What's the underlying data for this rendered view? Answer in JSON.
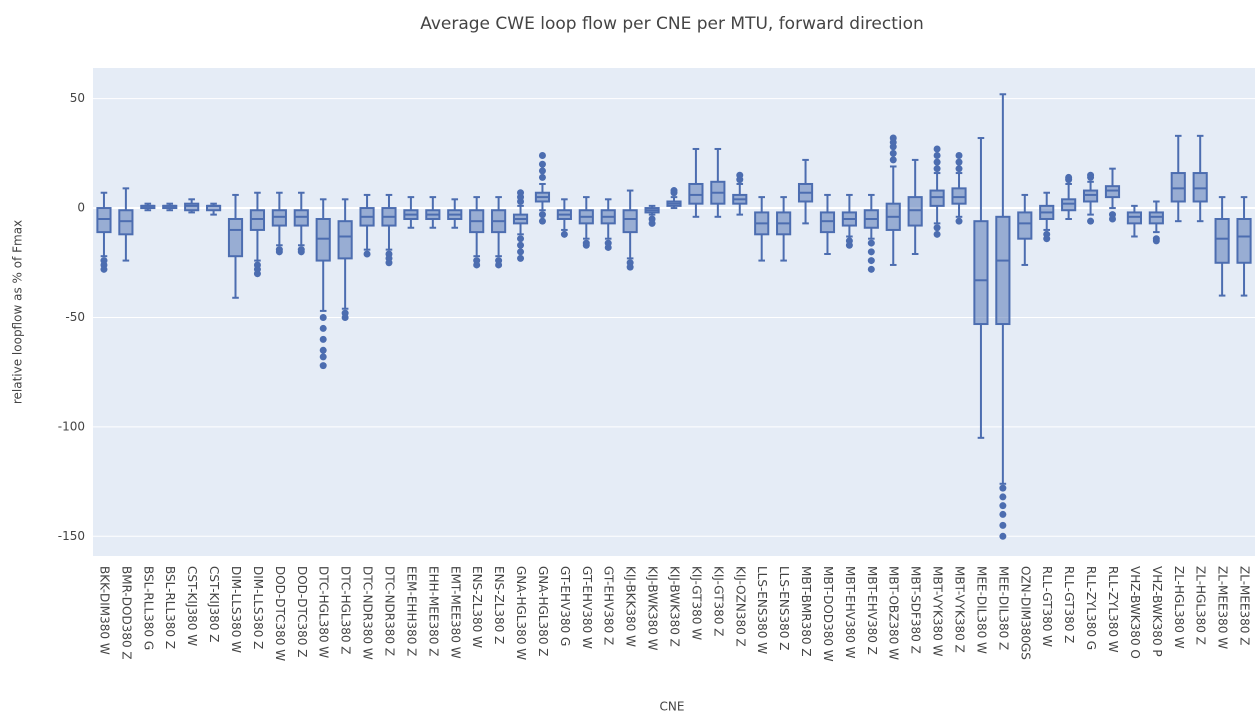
{
  "chart_data": {
    "type": "box",
    "title": "Average CWE loop flow per CNE per MTU, forward direction",
    "x_label": "CNE",
    "y_label": "relative loopflow as % of Fmax",
    "color": "#4c6db0",
    "grid": true,
    "ylim": [
      -159,
      64
    ],
    "yticks": [
      -150,
      -100,
      -50,
      0,
      50
    ],
    "categories": [
      "BKK-DIM380 W",
      "BMR-DOD380 Z",
      "BSL-RLL380 G",
      "BSL-RLL380 Z",
      "CST-KIJ380 W",
      "CST-KIJ380 Z",
      "DIM-LLS380 W",
      "DIM-LLS380 Z",
      "DOD-DTC380 W",
      "DOD-DTC380 Z",
      "DTC-HGL380 W",
      "DTC-HGL380 Z",
      "DTC-NDR380 W",
      "DTC-NDR380 Z",
      "EEM-EHH380 Z",
      "EHH-MEE380 Z",
      "EMT-MEE380 W",
      "ENS-ZL380 W",
      "ENS-ZL380 Z",
      "GNA-HGL380 W",
      "GNA-HGL380 Z",
      "GT-EHV380 G",
      "GT-EHV380 W",
      "GT-EHV380 Z",
      "KIJ-BKK380 W",
      "KIJ-BWK380 W",
      "KIJ-BWK380 Z",
      "KIJ-GT380 W",
      "KIJ-GT380 Z",
      "KIJ-OZN380 Z",
      "LLS-ENS380 W",
      "LLS-ENS380 Z",
      "MBT-BMR380 Z",
      "MBT-DOD380 W",
      "MBT-EHV380 W",
      "MBT-EHV380 Z",
      "MBT-OBZ380 W",
      "MBT-SDF380 Z",
      "MBT-VYK380 W",
      "MBT-VYK380 Z",
      "MEE-DIL380 W",
      "MEE-DIL380 Z",
      "OZN-DIM380GS",
      "RLL-GT380 W",
      "RLL-GT380 Z",
      "RLL-ZYL380 G",
      "RLL-ZYL380 W",
      "VHZ-BWK380 O",
      "VHZ-BWK380 P",
      "ZL-HGL380 W",
      "ZL-HGL380 Z",
      "ZL-MEE380 W",
      "ZL-MEE380 Z"
    ],
    "low": [
      -22,
      -24,
      -1,
      -1,
      -2,
      -3,
      -41,
      -24,
      -17,
      -17,
      -47,
      -46,
      -19,
      -19,
      -9,
      -9,
      -9,
      -22,
      -22,
      -12,
      -1,
      -10,
      -14,
      -14,
      -23,
      -3,
      0,
      -4,
      -4,
      -3,
      -24,
      -24,
      -7,
      -21,
      -13,
      -14,
      -26,
      -21,
      -7,
      -4,
      -105,
      -126,
      -26,
      -10,
      -5,
      -3,
      0,
      -13,
      -11,
      -6,
      -6,
      -40,
      -40
    ],
    "q1": [
      -11,
      -12,
      0,
      0,
      -1,
      -1,
      -22,
      -10,
      -8,
      -8,
      -24,
      -23,
      -8,
      -8,
      -5,
      -5,
      -5,
      -11,
      -11,
      -7,
      3,
      -5,
      -7,
      -7,
      -11,
      -2,
      1,
      2,
      2,
      2,
      -12,
      -12,
      3,
      -11,
      -8,
      -9,
      -10,
      -8,
      1,
      2,
      -53,
      -53,
      -14,
      -5,
      -1,
      3,
      5,
      -7,
      -7,
      3,
      3,
      -25,
      -25
    ],
    "median": [
      -5,
      -6,
      1,
      1,
      1,
      1,
      -10,
      -5,
      -4,
      -4,
      -14,
      -13,
      -4,
      -4,
      -3,
      -3,
      -3,
      -6,
      -6,
      -5,
      5,
      -3,
      -4,
      -4,
      -5,
      -1,
      2,
      6,
      7,
      4,
      -7,
      -7,
      7,
      -6,
      -5,
      -5,
      -4,
      -1,
      5,
      5,
      -33,
      -24,
      -7,
      -2,
      2,
      6,
      8,
      -4,
      -4,
      9,
      9,
      -14,
      -13
    ],
    "q3": [
      0,
      -1,
      1,
      1,
      2,
      1,
      -5,
      -1,
      -1,
      -1,
      -5,
      -6,
      0,
      0,
      -1,
      -1,
      -1,
      -1,
      -1,
      -3,
      7,
      -1,
      -1,
      -1,
      -1,
      0,
      3,
      11,
      12,
      6,
      -2,
      -2,
      11,
      -2,
      -2,
      -1,
      2,
      5,
      8,
      9,
      -6,
      -4,
      -2,
      1,
      4,
      8,
      10,
      -2,
      -2,
      16,
      16,
      -5,
      -5
    ],
    "high": [
      7,
      9,
      2,
      2,
      4,
      2,
      6,
      7,
      7,
      7,
      4,
      4,
      6,
      6,
      5,
      5,
      4,
      5,
      5,
      1,
      11,
      4,
      5,
      4,
      8,
      1,
      5,
      27,
      27,
      11,
      5,
      5,
      22,
      6,
      6,
      6,
      19,
      22,
      16,
      16,
      32,
      52,
      6,
      7,
      11,
      12,
      18,
      1,
      3,
      33,
      33,
      5,
      5
    ],
    "outliers": [
      [
        -24,
        -26,
        -28
      ],
      [],
      [],
      [],
      [],
      [],
      [],
      [
        -26,
        -28,
        -30
      ],
      [
        -19,
        -20
      ],
      [
        -19,
        -20
      ],
      [
        -50,
        -55,
        -60,
        -65,
        -68,
        -72
      ],
      [
        -48,
        -50
      ],
      [
        -21
      ],
      [
        -21,
        -23,
        -25
      ],
      [],
      [],
      [],
      [
        -24,
        -26
      ],
      [
        -24,
        -26
      ],
      [
        -14,
        -17,
        -20,
        -23,
        3,
        5,
        7
      ],
      [
        -6,
        -3,
        14,
        17,
        20,
        24
      ],
      [
        -12
      ],
      [
        -16,
        -17
      ],
      [
        -16,
        -18
      ],
      [
        -25,
        -27
      ],
      [
        -5,
        -7
      ],
      [
        7,
        8
      ],
      [],
      [],
      [
        13,
        15
      ],
      [],
      [],
      [],
      [],
      [
        -15,
        -17
      ],
      [
        -16,
        -20,
        -24,
        -28
      ],
      [
        22,
        25,
        28,
        30,
        32
      ],
      [],
      [
        -9,
        -12,
        18,
        21,
        24,
        27
      ],
      [
        -6,
        18,
        21,
        24
      ],
      [],
      [
        -128,
        -132,
        -136,
        -140,
        -145,
        -150
      ],
      [],
      [
        -12,
        -14
      ],
      [
        13,
        14
      ],
      [
        -6,
        14,
        15
      ],
      [
        -3,
        -5
      ],
      [],
      [
        -14,
        -15
      ],
      [],
      [],
      [],
      []
    ]
  }
}
